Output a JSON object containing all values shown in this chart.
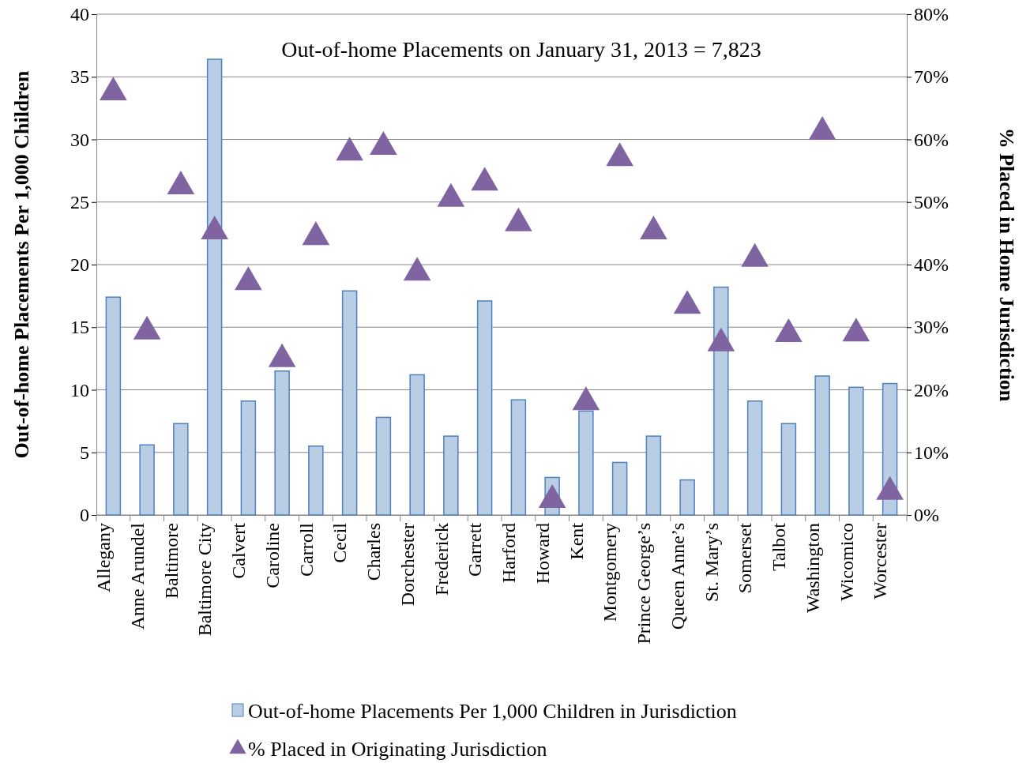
{
  "chart_data": {
    "type": "bar",
    "title": "Out-of-home Placements on January 31, 2013 = 7,823",
    "ylabel": "Out-of-home Placements Per 1,000 Children",
    "y2label": "% Placed in Home Jurisdiction",
    "categories": [
      "Allegany",
      "Anne Arundel",
      "Baltimore",
      "Baltimore City",
      "Calvert",
      "Caroline",
      "Carroll",
      "Cecil",
      "Charles",
      "Dorchester",
      "Frederick",
      "Garrett",
      "Harford",
      "Howard",
      "Kent",
      "Montgomery",
      "Prince George’s",
      "Queen Anne’s",
      "St. Mary’s",
      "Somerset",
      "Talbot",
      "Washington",
      "Wicomico",
      "Worcester"
    ],
    "series": [
      {
        "name": "Out-of-home Placements Per 1,000 Children in Jurisdiction",
        "color": "#b9cde5",
        "values": [
          17.4,
          5.6,
          7.3,
          36.4,
          9.1,
          11.5,
          5.5,
          17.9,
          7.8,
          11.2,
          6.3,
          17.1,
          9.2,
          3.0,
          8.3,
          4.2,
          6.3,
          2.8,
          18.2,
          9.1,
          7.3,
          11.1,
          10.2,
          10.5
        ]
      },
      {
        "name": "% Placed in Originating Jurisdiction",
        "type": "scatter",
        "axis": "y2",
        "marker": "triangle",
        "color": "#8064a2",
        "values": [
          67.5,
          29.3,
          52.5,
          45.3,
          37.2,
          24.9,
          44.4,
          57.9,
          58.8,
          38.7,
          50.5,
          53.1,
          46.6,
          2.4,
          18.0,
          57.0,
          45.3,
          33.4,
          27.4,
          40.9,
          28.9,
          61.2,
          29.0,
          3.7
        ]
      }
    ],
    "ylim": [
      0,
      40
    ],
    "yticks": [
      0,
      5,
      10,
      15,
      20,
      25,
      30,
      35,
      40
    ],
    "y2lim": [
      0,
      80
    ],
    "y2ticks": [
      {
        "value": 0,
        "label": "0%"
      },
      {
        "value": 10,
        "label": "10%"
      },
      {
        "value": 20,
        "label": "20%"
      },
      {
        "value": 30,
        "label": "30%"
      },
      {
        "value": 40,
        "label": "40%"
      },
      {
        "value": 50,
        "label": "50%"
      },
      {
        "value": 60,
        "label": "60%"
      },
      {
        "value": 70,
        "label": "70%"
      },
      {
        "value": 80,
        "label": "80%"
      }
    ],
    "grid": "y",
    "legend": "bottom"
  }
}
